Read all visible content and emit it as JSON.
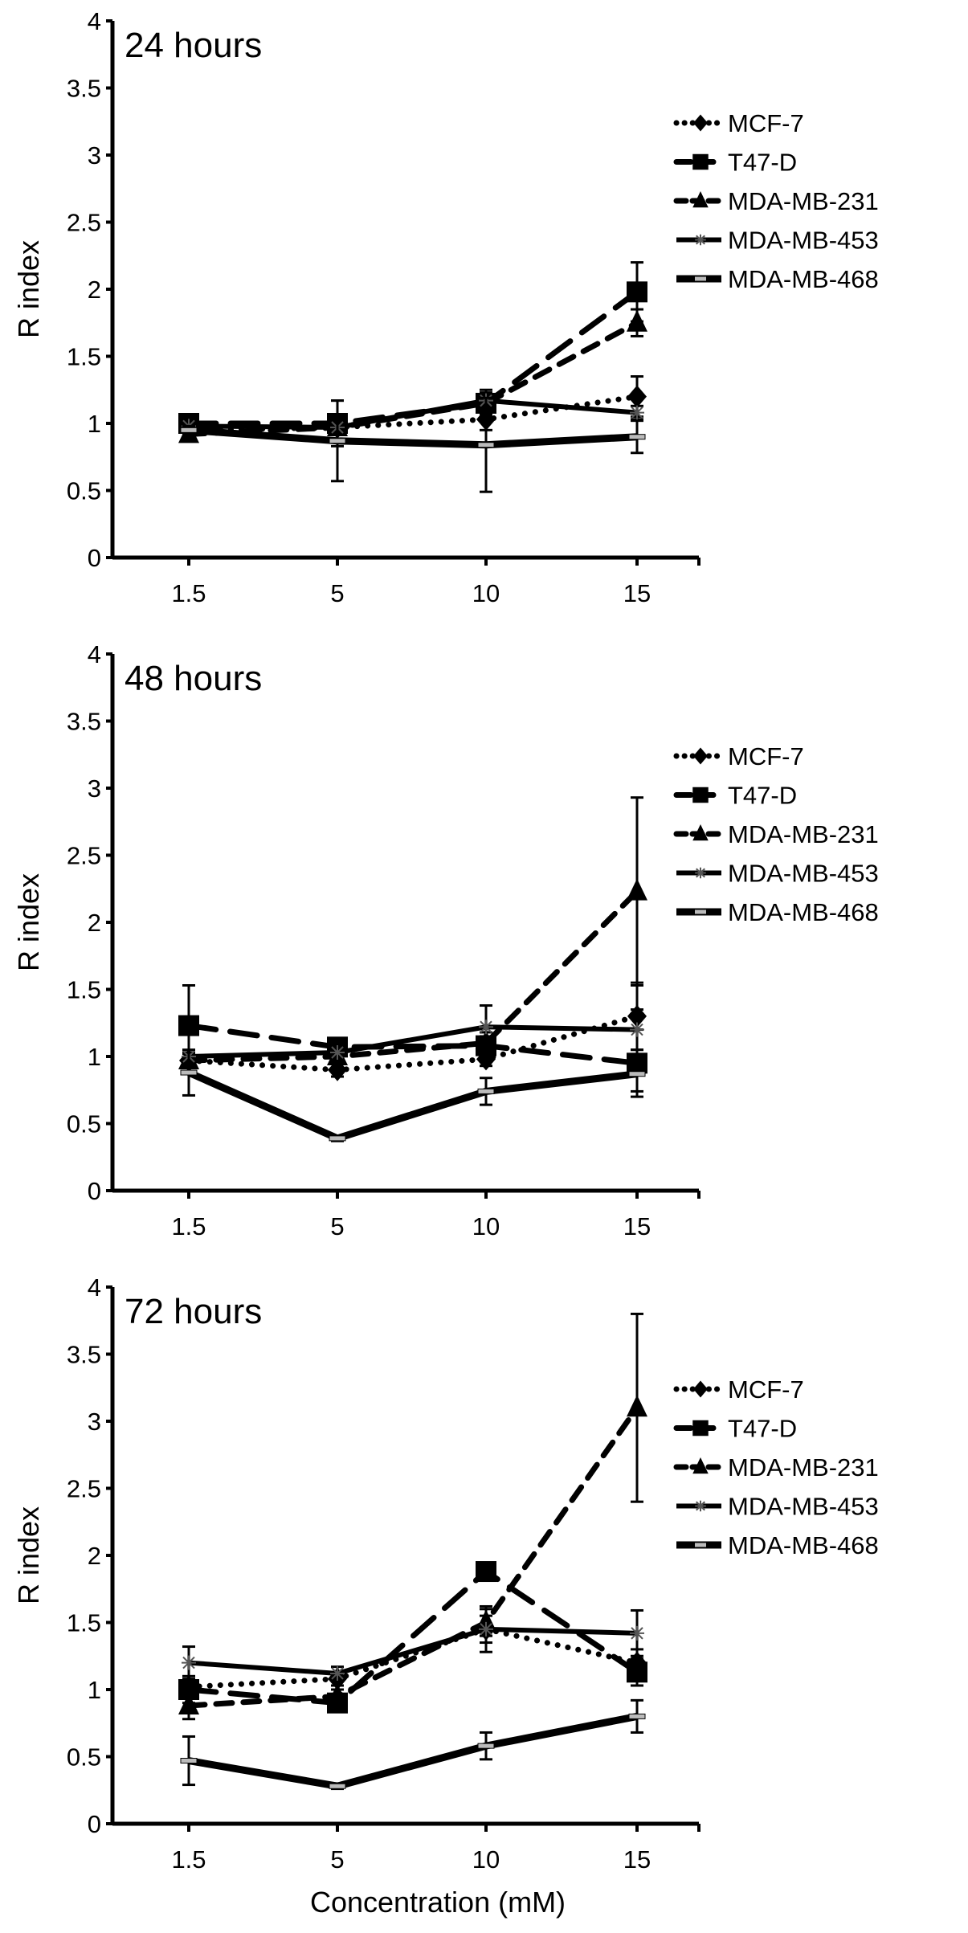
{
  "chart_data": [
    {
      "type": "line",
      "title": "24 hours",
      "xlabel": "",
      "ylabel": "R index",
      "categories": [
        "1.5",
        "5",
        "10",
        "15"
      ],
      "ylim": [
        0,
        4
      ],
      "yticks": [
        "0",
        "0.5",
        "1",
        "1.5",
        "2",
        "2.5",
        "3",
        "3.5",
        "4"
      ],
      "grid": false,
      "legend_position": "top-right",
      "series": [
        {
          "name": "MCF-7",
          "values": [
            0.95,
            0.97,
            1.03,
            1.2
          ],
          "errors": [
            0.03,
            0.05,
            0.08,
            0.15
          ]
        },
        {
          "name": "T47-D",
          "values": [
            1.0,
            1.0,
            1.15,
            1.98
          ],
          "errors": [
            0.03,
            0.17,
            0.1,
            0.22
          ]
        },
        {
          "name": "MDA-MB-231",
          "values": [
            0.92,
            0.97,
            1.15,
            1.75
          ],
          "errors": [
            0.03,
            0.05,
            0.08,
            0.1
          ]
        },
        {
          "name": "MDA-MB-453",
          "values": [
            0.98,
            0.97,
            1.17,
            1.08
          ],
          "errors": [
            0.03,
            0.05,
            0.05,
            0.05
          ]
        },
        {
          "name": "MDA-MB-468",
          "values": [
            0.95,
            0.87,
            0.84,
            0.9
          ],
          "errors": [
            0.03,
            0.3,
            0.35,
            0.12
          ]
        }
      ]
    },
    {
      "type": "line",
      "title": "48 hours",
      "xlabel": "",
      "ylabel": "R index",
      "categories": [
        "1.5",
        "5",
        "10",
        "15"
      ],
      "ylim": [
        0,
        4
      ],
      "yticks": [
        "0",
        "0.5",
        "1",
        "1.5",
        "2",
        "2.5",
        "3",
        "3.5",
        "4"
      ],
      "grid": false,
      "legend_position": "top-right",
      "series": [
        {
          "name": "MCF-7",
          "values": [
            0.97,
            0.9,
            0.98,
            1.3
          ],
          "errors": [
            0.05,
            0.05,
            0.05,
            0.25
          ]
        },
        {
          "name": "T47-D",
          "values": [
            1.23,
            1.07,
            1.08,
            0.95
          ],
          "errors": [
            0.3,
            0.05,
            0.1,
            0.25
          ]
        },
        {
          "name": "MDA-MB-231",
          "values": [
            0.97,
            1.0,
            1.1,
            2.23
          ],
          "errors": [
            0.05,
            0.05,
            0.05,
            0.7
          ]
        },
        {
          "name": "MDA-MB-453",
          "values": [
            1.0,
            1.03,
            1.22,
            1.2
          ],
          "errors": [
            0.03,
            0.03,
            0.16,
            0.15
          ]
        },
        {
          "name": "MDA-MB-468",
          "values": [
            0.88,
            0.39,
            0.74,
            0.87
          ],
          "errors": [
            0.17,
            0.02,
            0.1,
            0.13
          ]
        }
      ]
    },
    {
      "type": "line",
      "title": "72 hours",
      "xlabel": "Concentration (mM)",
      "ylabel": "R index",
      "categories": [
        "1.5",
        "5",
        "10",
        "15"
      ],
      "ylim": [
        0,
        4
      ],
      "yticks": [
        "0",
        "0.5",
        "1",
        "1.5",
        "2",
        "2.5",
        "3",
        "3.5",
        "4"
      ],
      "grid": false,
      "legend_position": "top-right",
      "series": [
        {
          "name": "MCF-7",
          "values": [
            1.02,
            1.08,
            1.45,
            1.2
          ],
          "errors": [
            0.05,
            0.05,
            0.1,
            0.1
          ]
        },
        {
          "name": "T47-D",
          "values": [
            1.0,
            0.9,
            1.88,
            1.13
          ],
          "errors": [
            0.1,
            0.05,
            0.05,
            0.1
          ]
        },
        {
          "name": "MDA-MB-231",
          "values": [
            0.88,
            0.95,
            1.5,
            3.1
          ],
          "errors": [
            0.1,
            0.05,
            0.1,
            0.7
          ]
        },
        {
          "name": "MDA-MB-453",
          "values": [
            1.2,
            1.12,
            1.45,
            1.42
          ],
          "errors": [
            0.12,
            0.05,
            0.17,
            0.17
          ]
        },
        {
          "name": "MDA-MB-468",
          "values": [
            0.47,
            0.28,
            0.58,
            0.8
          ],
          "errors": [
            0.18,
            0.02,
            0.1,
            0.12
          ]
        }
      ]
    }
  ]
}
